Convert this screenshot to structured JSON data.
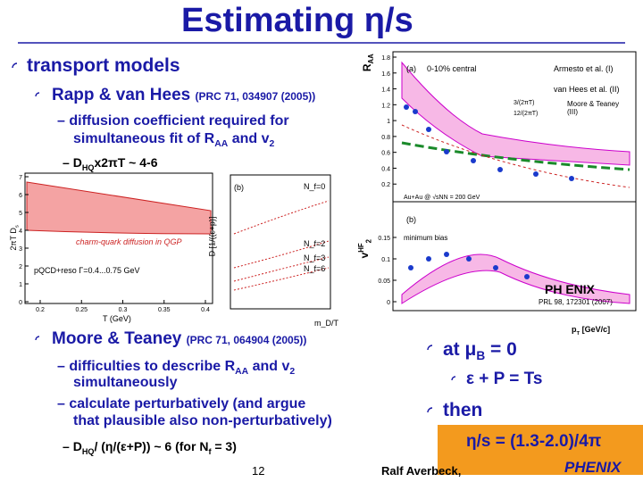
{
  "slide": {
    "title": "Estimating η/s",
    "bullet1": "transport models",
    "rapp": {
      "name": "Rapp & van Hees",
      "ref": "(PRC 71, 034907 (2005))"
    },
    "rapp_dash1": [
      "diffusion coefficient required for"
    ],
    "rapp_dash2": [
      "simultaneous fit of R",
      "AA",
      " and v",
      "2"
    ],
    "rapp_sub": [
      "D",
      "HQ",
      "x2πT ~ 4-6"
    ],
    "moore": {
      "name": "Moore & Teaney",
      "ref": "(PRC 71, 064904 (2005))"
    },
    "moore_dash1": [
      "difficulties to describe R",
      "AA",
      " and v",
      "2"
    ],
    "moore_dash1b": [
      "simultaneously"
    ],
    "moore_dash2": [
      "calculate perturbatively (and argue"
    ],
    "moore_dash2b": [
      "that plausible also non-perturbatively)"
    ],
    "moore_sub": [
      "D",
      "HQ",
      "/ (η/(ε+P)) ~ 6   (for N",
      "f",
      " = 3)"
    ],
    "right1": [
      "at μ",
      "B",
      " = 0"
    ],
    "right1sub": "ε + P = Ts",
    "right2": "then",
    "right2sub": "η/s = (1.3-2.0)/4π",
    "page": "12",
    "author": "Ralf Averbeck,",
    "logo": "PHENIX",
    "left_plot": {
      "ylabel": "2πT D",
      "ylabel_sub": "s",
      "band_label": "charm-quark diffusion in QGP",
      "legend": "pQCD+reso Γ=0.4...0.75 GeV",
      "xlabel": "T (GeV)",
      "yticks": [
        0,
        1,
        2,
        3,
        4,
        5,
        6,
        7
      ],
      "xticks": [
        0.2,
        0.25,
        0.3,
        0.35,
        0.4
      ]
    },
    "mid_plot": {
      "panel": "(b)",
      "ylabel": "D [1/((ε+p)]",
      "labels": [
        "N_f=0",
        "N_f=2",
        "N_f=3",
        "N_f=6"
      ],
      "xlabel": "m_D/T"
    },
    "right_plot": {
      "ylabel_top": "R",
      "ylabel_top_sub": "AA",
      "panel_a": "(a)",
      "centrality": "0-10% central",
      "legend": [
        "Armesto et al. (I)",
        "van Hees et al. (II)",
        "3/(2πT)",
        "12/(2πT)",
        "Moore & Teaney (III)"
      ],
      "system": "Au+Au @ √sNN = 200 GeV",
      "panel_b": "(b)",
      "minbias": "minimum bias",
      "ylabel_bottom": "v",
      "ylabel_bottom_sup": "HF",
      "ylabel_bottom_sub": "2",
      "logo": "PH ENIX",
      "ref": "PRL 98, 172301 (2007)",
      "xlabel": "p",
      "xlabel_sub": "T",
      "xlabel_unit": "[GeV/c]",
      "raa_ticks": [
        {
          "value": 0.2,
          "label": "0.2"
        },
        {
          "value": 0.4,
          "label": "0.4"
        },
        {
          "value": 0.6,
          "label": "0.6"
        },
        {
          "value": 0.8,
          "label": "0.8"
        },
        1,
        {
          "value": 1.2,
          "label": "1.2"
        },
        {
          "value": 1.4,
          "label": "1.4"
        },
        {
          "value": 1.6,
          "label": "1.6"
        },
        {
          "value": 1.8,
          "label": "1.8"
        }
      ],
      "v2_ticks": [
        0,
        0.05,
        0.1,
        0.15
      ]
    }
  }
}
